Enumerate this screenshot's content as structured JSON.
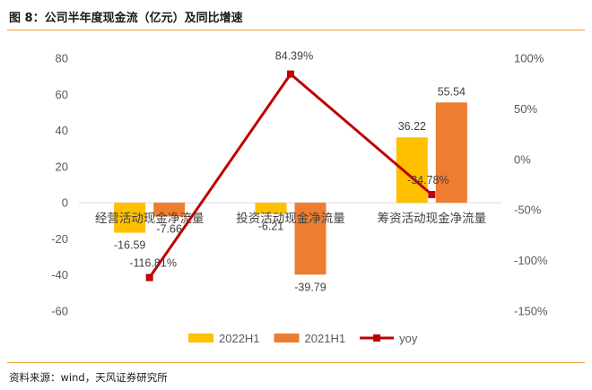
{
  "header": {
    "title": "图 8：公司半年度现金流（亿元）及同比增速"
  },
  "footer": {
    "source": "资料来源：wind，天风证券研究所"
  },
  "colors": {
    "s2022": "#FFC000",
    "s2021": "#ED7D31",
    "yoy": "#C00000",
    "rule": "#E8A23A",
    "axis": "#D9D9D9",
    "text": "#595959"
  },
  "chart_data": {
    "type": "bar",
    "categories": [
      "经营活动现金净流量",
      "投资活动现金净流量",
      "筹资活动现金净流量"
    ],
    "series": [
      {
        "name": "2022H1",
        "type": "bar",
        "axis": "left",
        "values": [
          -16.59,
          -6.21,
          36.22
        ],
        "labels": [
          "-16.59",
          "-6.21",
          "36.22"
        ]
      },
      {
        "name": "2021H1",
        "type": "bar",
        "axis": "left",
        "values": [
          -7.66,
          -39.79,
          55.54
        ],
        "labels": [
          "-7.66",
          "-39.79",
          "55.54"
        ]
      },
      {
        "name": "yoy",
        "type": "line",
        "axis": "right",
        "values": [
          -116.81,
          84.39,
          -34.78
        ],
        "labels": [
          "-116.81%",
          "84.39%",
          "-34.78%"
        ]
      }
    ],
    "y_left": {
      "min": -60,
      "max": 80,
      "ticks": [
        -60,
        -40,
        -20,
        0,
        20,
        40,
        60,
        80
      ],
      "tick_labels": [
        "-60",
        "-40",
        "-20",
        "0",
        "20",
        "40",
        "60",
        "80"
      ]
    },
    "y_right": {
      "min": -150,
      "max": 100,
      "ticks": [
        -150,
        -100,
        -50,
        0,
        50,
        100
      ],
      "tick_labels": [
        "-150%",
        "-100%",
        "-50%",
        "0%",
        "50%",
        "100%"
      ]
    },
    "legend": {
      "position": "bottom",
      "entries": [
        "2022H1",
        "2021H1",
        "yoy"
      ]
    },
    "grid": false,
    "title": "",
    "xlabel": "",
    "ylabel": ""
  }
}
